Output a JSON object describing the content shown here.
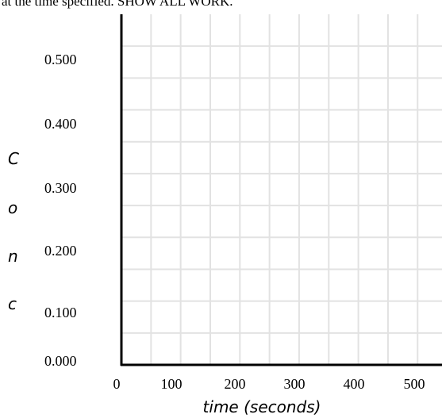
{
  "header": {
    "text": "at the time specified.  SHOW ALL WORK."
  },
  "chart_data": {
    "type": "line",
    "title": "",
    "xlabel": "time (seconds)",
    "ylabel": "Conc",
    "ylabel_letters": [
      "C",
      "o",
      "n",
      "c"
    ],
    "xlim": [
      0,
      550
    ],
    "ylim": [
      0,
      0.55
    ],
    "x_ticks": [
      0,
      100,
      200,
      300,
      400,
      500
    ],
    "x_tick_labels": [
      "0",
      "100",
      "200",
      "300",
      "400",
      "500"
    ],
    "y_ticks": [
      0,
      0.1,
      0.2,
      0.3,
      0.4,
      0.5
    ],
    "y_tick_labels": [
      "0.000",
      "0.100",
      "0.200",
      "0.300",
      "0.400",
      "0.500"
    ],
    "grid": true,
    "grid_x_step": 50,
    "grid_y_step": 0.05,
    "series": []
  }
}
